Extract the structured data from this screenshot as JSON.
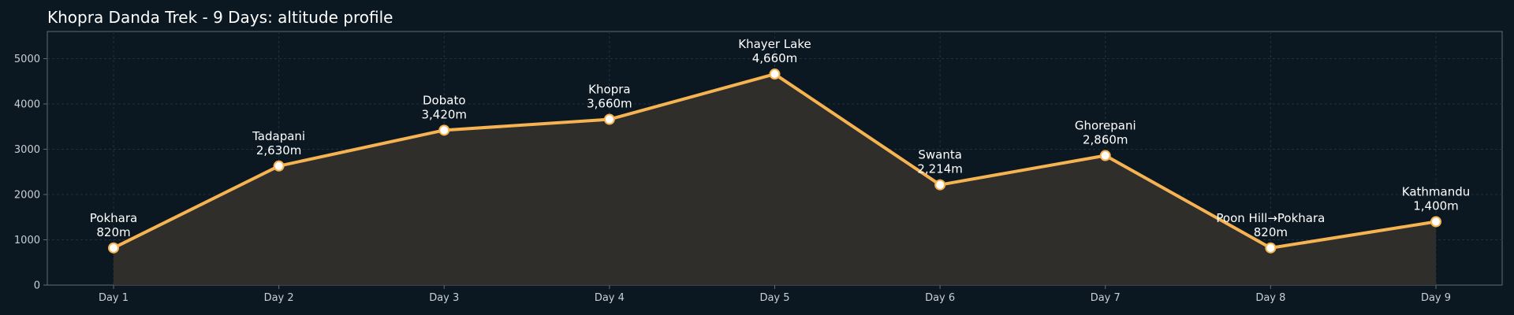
{
  "chart_data": {
    "type": "area",
    "title": "Khopra Danda Trek - 9 Days: altitude profile",
    "xlabel": "",
    "ylabel": "",
    "categories": [
      "Day 1",
      "Day 2",
      "Day 3",
      "Day 4",
      "Day 5",
      "Day 6",
      "Day 7",
      "Day 8",
      "Day 9"
    ],
    "series": [
      {
        "values": [
          820,
          2630,
          3420,
          3660,
          4660,
          2214,
          2860,
          820,
          1400
        ],
        "point_names": [
          "Pokhara",
          "Tadapani",
          "Dobato",
          "Khopra",
          "Khayer Lake",
          "Swanta",
          "Ghorepani",
          "Poon Hill→Pokhara",
          "Kathmandu"
        ],
        "point_labels": [
          "820m",
          "2,630m",
          "3,420m",
          "3,660m",
          "4,660m",
          "2,214m",
          "2,860m",
          "820m",
          "1,400m"
        ]
      }
    ],
    "ylim": [
      0,
      5600
    ],
    "yticks": [
      0,
      1000,
      2000,
      3000,
      4000,
      5000
    ],
    "grid": true,
    "legend": "none",
    "colors": {
      "background": "#0c1821",
      "line": "#f6b352",
      "fill": "#332f2c",
      "marker_fill": "#ffffff",
      "grid": "#1f3140",
      "axis": "#5b6b78"
    }
  }
}
